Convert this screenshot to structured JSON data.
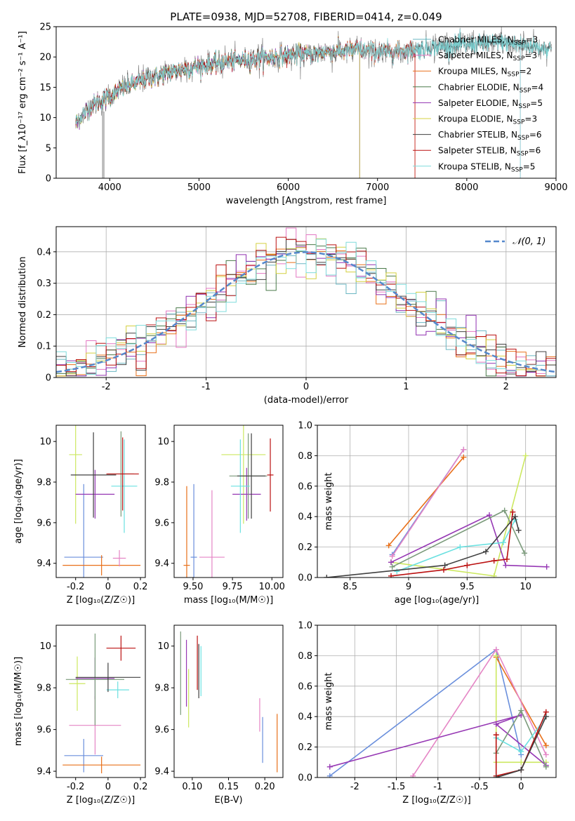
{
  "colors": {
    "model": [
      "#6ab6c2",
      "#e377c2",
      "#e8701a",
      "#4a7a4a",
      "#9030b0",
      "#d4d040",
      "#404040",
      "#bb1111",
      "#7fdcdc"
    ],
    "series": [
      "#6a8fdc",
      "#e8701a",
      "#e585c5",
      "#cce860",
      "#9638b4",
      "#7a9a7a",
      "#6ae0e0",
      "#bb1111",
      "#404040"
    ],
    "normal": "#5588cc",
    "data": "#808080"
  },
  "chart_data": [
    {
      "type": "line",
      "title": "PLATE=0938, MJD=52708, FIBERID=0414, z=0.049",
      "xlabel": "wavelength [Angstrom, rest frame]",
      "ylabel": "Flux [f_λ10⁻¹⁷ erg cm⁻² s⁻¹ A⁻¹]",
      "xlim": [
        3400,
        9000
      ],
      "ylim": [
        0,
        25
      ],
      "xticks": [
        4000,
        5000,
        6000,
        7000,
        8000,
        9000
      ],
      "yticks": [
        0,
        5,
        10,
        15,
        20,
        25
      ],
      "legend_position": "upper-right",
      "legend": [
        {
          "name": "Chabrier MILES, N",
          "nssp": "SSP",
          "suffix": "=3"
        },
        {
          "name": "Salpeter MILES, N",
          "nssp": "SSP",
          "suffix": "=3"
        },
        {
          "name": "Kroupa MILES, N",
          "nssp": "SSP",
          "suffix": "=2"
        },
        {
          "name": "Chabrier ELODIE, N",
          "nssp": "SSP",
          "suffix": "=4"
        },
        {
          "name": "Salpeter ELODIE, N",
          "nssp": "SSP",
          "suffix": "=5"
        },
        {
          "name": "Kroupa ELODIE, N",
          "nssp": "SSP",
          "suffix": "=3"
        },
        {
          "name": "Chabrier STELIB, N",
          "nssp": "SSP",
          "suffix": "=6"
        },
        {
          "name": "Salpeter STELIB, N",
          "nssp": "SSP",
          "suffix": "=6"
        },
        {
          "name": "Kroupa STELIB, N",
          "nssp": "SSP",
          "suffix": "=5"
        }
      ],
      "spectrum_knots": {
        "wavelength": [
          3620,
          3700,
          3800,
          3900,
          4000,
          4200,
          4400,
          4600,
          4800,
          5000,
          5300,
          5600,
          6000,
          6300,
          6600,
          6800,
          7000,
          7200,
          7400,
          7600,
          8000,
          8400,
          8800,
          9000
        ],
        "flux": [
          9,
          10.5,
          12,
          12.8,
          13.6,
          15.2,
          16.3,
          17.2,
          17.9,
          18.5,
          19.2,
          19.7,
          20.2,
          20.6,
          21.0,
          21.2,
          20.8,
          20.9,
          21.2,
          21.6,
          22.0,
          22.4,
          21.6,
          21.2
        ],
        "noise_amplitude": 1.4,
        "model_ranges": [
          [
            3620,
            8600
          ],
          [
            3620,
            7420
          ],
          [
            3620,
            7420
          ],
          [
            3620,
            6800
          ],
          [
            3620,
            6800
          ],
          [
            3620,
            6800
          ],
          [
            3620,
            8950
          ],
          [
            3620,
            7420
          ],
          [
            3620,
            8950
          ]
        ]
      }
    },
    {
      "type": "histogram",
      "xlabel": "(data-model)/error",
      "ylabel": "Normed distribution",
      "xlim": [
        -2.5,
        2.5
      ],
      "ylim": [
        0,
        0.48
      ],
      "xticks": [
        -2,
        -1,
        0,
        1,
        2
      ],
      "yticks": [
        0.0,
        0.1,
        0.2,
        0.3,
        0.4
      ],
      "grid": true,
      "bin_width": 0.1,
      "legend_position": "upper-right",
      "legend": [
        {
          "name": "𝒩(0, 1)",
          "style": "dashed"
        }
      ],
      "n_models": 9,
      "spread": 0.035
    },
    {
      "type": "scatter",
      "xlabel": "Z [log₁₀(Z/Z☉)]",
      "ylabel": "age  [log₁₀(age/yr)]",
      "xlim": [
        -0.32,
        0.23
      ],
      "ylim": [
        9.33,
        10.08
      ],
      "xticks": [
        -0.2,
        0.0,
        0.2
      ],
      "yticks": [
        9.4,
        9.6,
        9.8,
        10.0
      ],
      "points": [
        {
          "x": -0.15,
          "y": 9.43,
          "xerr": 0.12,
          "yerr": 0.36
        },
        {
          "x": -0.04,
          "y": 9.39,
          "xerr": 0.24,
          "yerr": 0.05
        },
        {
          "x": 0.07,
          "y": 9.425,
          "xerr": 0.04,
          "yerr": 0.04
        },
        {
          "x": -0.2,
          "y": 9.935,
          "xerr": 0.04,
          "yerr": 0.34
        },
        {
          "x": -0.08,
          "y": 9.74,
          "xerr": 0.12,
          "yerr": 0.12
        },
        {
          "x": 0.08,
          "y": 9.84,
          "xerr": 0.08,
          "yerr": 0.21
        },
        {
          "x": 0.1,
          "y": 9.78,
          "xerr": 0.08,
          "yerr": 0.23
        },
        {
          "x": 0.09,
          "y": 9.84,
          "xerr": 0.1,
          "yerr": 0.18
        },
        {
          "x": -0.09,
          "y": 9.835,
          "xerr": 0.14,
          "yerr": 0.21
        }
      ]
    },
    {
      "type": "scatter",
      "xlabel": "mass [log₁₀(M/M☉)]",
      "ylabel": "",
      "xlim": [
        9.38,
        10.07
      ],
      "ylim": [
        9.33,
        10.08
      ],
      "xticks": [
        9.5,
        9.75,
        10.0
      ],
      "tick_labels": [
        "9.50",
        "9.75",
        "10.00"
      ],
      "yticks": [
        9.4,
        9.6,
        9.8,
        10.0
      ],
      "points": [
        {
          "x": 9.505,
          "y": 9.43,
          "xerr": 0.02,
          "yerr": 0.36
        },
        {
          "x": 9.46,
          "y": 9.39,
          "xerr": 0.02,
          "yerr": 0.39
        },
        {
          "x": 9.62,
          "y": 9.43,
          "xerr": 0.08,
          "yerr": 0.33
        },
        {
          "x": 9.82,
          "y": 9.935,
          "xerr": 0.14,
          "yerr": 0.34
        },
        {
          "x": 9.84,
          "y": 9.74,
          "xerr": 0.09,
          "yerr": 0.13
        },
        {
          "x": 9.85,
          "y": 9.83,
          "xerr": 0.12,
          "yerr": 0.21
        },
        {
          "x": 9.8,
          "y": 9.78,
          "xerr": 0.06,
          "yerr": 0.23
        },
        {
          "x": 9.99,
          "y": 9.835,
          "xerr": 0.02,
          "yerr": 0.18
        },
        {
          "x": 9.87,
          "y": 9.83,
          "xerr": 0.09,
          "yerr": 0.21
        }
      ]
    },
    {
      "type": "line",
      "xlabel": "age  [log₁₀(age/yr)]",
      "ylabel": "mass weight",
      "xlim": [
        8.22,
        10.26
      ],
      "ylim": [
        0,
        1
      ],
      "xticks": [
        8.5,
        9.0,
        9.5,
        10.0
      ],
      "yticks": [
        0.0,
        0.2,
        0.4,
        0.6,
        0.8,
        1.0
      ],
      "grid": true,
      "series": [
        {
          "x": [
            8.86,
            9.47
          ],
          "y": [
            0.15,
            0.84
          ]
        },
        {
          "x": [
            8.83,
            9.47
          ],
          "y": [
            0.21,
            0.79
          ]
        },
        {
          "x": [
            8.86,
            9.47
          ],
          "y": [
            0.14,
            0.84
          ]
        },
        {
          "x": [
            8.85,
            9.73,
            10.0
          ],
          "y": [
            0.1,
            0.01,
            0.8
          ]
        },
        {
          "x": [
            8.85,
            9.69,
            9.83,
            10.18
          ],
          "y": [
            0.1,
            0.41,
            0.08,
            0.07
          ]
        },
        {
          "x": [
            8.86,
            9.82,
            9.99
          ],
          "y": [
            0.07,
            0.44,
            0.16
          ]
        },
        {
          "x": [
            8.9,
            9.44,
            9.81,
            9.91
          ],
          "y": [
            0.04,
            0.2,
            0.23,
            0.38
          ]
        },
        {
          "x": [
            8.85,
            9.3,
            9.5,
            9.73,
            9.84,
            9.89
          ],
          "y": [
            0.01,
            0.05,
            0.08,
            0.11,
            0.12,
            0.43
          ]
        },
        {
          "x": [
            8.3,
            9.31,
            9.66,
            9.91,
            9.94
          ],
          "y": [
            0.0,
            0.08,
            0.17,
            0.4,
            0.31
          ]
        }
      ]
    },
    {
      "type": "scatter",
      "xlabel": "Z [log₁₀(Z/Z☉)]",
      "ylabel": "mass [log₁₀(M/M☉)]",
      "xlim": [
        -0.32,
        0.23
      ],
      "ylim": [
        9.37,
        10.1
      ],
      "xticks": [
        -0.2,
        0.0,
        0.2
      ],
      "yticks": [
        9.4,
        9.6,
        9.8,
        10.0
      ],
      "points": [
        {
          "x": -0.15,
          "y": 9.475,
          "xerr": 0.12,
          "yerr": 0.08
        },
        {
          "x": -0.04,
          "y": 9.43,
          "xerr": 0.24,
          "yerr": 0.04
        },
        {
          "x": -0.08,
          "y": 9.62,
          "xerr": 0.16,
          "yerr": 0.14
        },
        {
          "x": -0.19,
          "y": 9.82,
          "xerr": 0.05,
          "yerr": 0.13
        },
        {
          "x": -0.08,
          "y": 9.845,
          "xerr": 0.12,
          "yerr": 0.1
        },
        {
          "x": -0.08,
          "y": 9.84,
          "xerr": 0.18,
          "yerr": 0.22
        },
        {
          "x": 0.06,
          "y": 9.79,
          "xerr": 0.07,
          "yerr": 0.04
        },
        {
          "x": 0.08,
          "y": 9.99,
          "xerr": 0.09,
          "yerr": 0.06
        },
        {
          "x": 0.0,
          "y": 9.85,
          "xerr": 0.2,
          "yerr": 0.07
        }
      ]
    },
    {
      "type": "scatter",
      "xlabel": "E(B-V)",
      "ylabel": "",
      "xlim": [
        0.075,
        0.225
      ],
      "ylim": [
        9.37,
        10.1
      ],
      "xticks": [
        0.1,
        0.15,
        0.2
      ],
      "tick_labels": [
        "0.10",
        "0.15",
        "0.20"
      ],
      "yticks": [
        9.4,
        9.6,
        9.8,
        10.0
      ],
      "points": [
        {
          "x": 0.197,
          "y": 9.55,
          "xerr": 0,
          "yerr": 0.11
        },
        {
          "x": 0.217,
          "y": 9.535,
          "xerr": 0,
          "yerr": 0.14
        },
        {
          "x": 0.193,
          "y": 9.67,
          "xerr": 0,
          "yerr": 0.08
        },
        {
          "x": 0.095,
          "y": 9.75,
          "xerr": 0,
          "yerr": 0.14
        },
        {
          "x": 0.092,
          "y": 9.87,
          "xerr": 0,
          "yerr": 0.16
        },
        {
          "x": 0.084,
          "y": 9.87,
          "xerr": 0,
          "yerr": 0.2
        },
        {
          "x": 0.112,
          "y": 9.88,
          "xerr": 0,
          "yerr": 0.12
        },
        {
          "x": 0.107,
          "y": 9.92,
          "xerr": 0,
          "yerr": 0.13
        },
        {
          "x": 0.109,
          "y": 9.88,
          "xerr": 0,
          "yerr": 0.13
        }
      ]
    },
    {
      "type": "line",
      "xlabel": "Z [log₁₀(Z/Z☉)]",
      "ylabel": "mass weight",
      "xlim": [
        -2.45,
        0.42
      ],
      "ylim": [
        0,
        1
      ],
      "xticks": [
        -2.0,
        -1.5,
        -1.0,
        -0.5,
        0.0
      ],
      "yticks": [
        0.0,
        0.2,
        0.4,
        0.6,
        0.8,
        1.0
      ],
      "grid": true,
      "series": [
        {
          "x": [
            -2.3,
            -0.3,
            0.0
          ],
          "y": [
            0.01,
            0.84,
            0.15
          ]
        },
        {
          "x": [
            -0.3,
            0.3
          ],
          "y": [
            0.79,
            0.21
          ]
        },
        {
          "x": [
            -1.3,
            -0.3,
            0.3
          ],
          "y": [
            0.01,
            0.84,
            0.15
          ]
        },
        {
          "x": [
            -0.3,
            -0.3,
            0.0,
            0.3
          ],
          "y": [
            0.8,
            0.1,
            0.1,
            0.1
          ]
        },
        {
          "x": [
            -2.3,
            0.0,
            -0.3,
            0.3
          ],
          "y": [
            0.07,
            0.41,
            0.35,
            0.08
          ]
        },
        {
          "x": [
            -0.3,
            0.0,
            0.3
          ],
          "y": [
            0.16,
            0.44,
            0.07
          ]
        },
        {
          "x": [
            -0.3,
            0.0,
            0.3
          ],
          "y": [
            0.26,
            0.17,
            0.4
          ]
        },
        {
          "x": [
            -0.3,
            -0.3,
            0.0,
            0.3
          ],
          "y": [
            0.28,
            0.01,
            0.05,
            0.43
          ]
        },
        {
          "x": [
            -0.3,
            0.0,
            0.3
          ],
          "y": [
            0.0,
            0.05,
            0.4
          ]
        }
      ]
    }
  ]
}
